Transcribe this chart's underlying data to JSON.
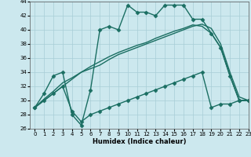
{
  "xlabel": "Humidex (Indice chaleur)",
  "xlim": [
    -0.5,
    23
  ],
  "ylim": [
    26,
    44
  ],
  "xticks": [
    0,
    1,
    2,
    3,
    4,
    5,
    6,
    7,
    8,
    9,
    10,
    11,
    12,
    13,
    14,
    15,
    16,
    17,
    18,
    19,
    20,
    21,
    22,
    23
  ],
  "yticks": [
    26,
    28,
    30,
    32,
    34,
    36,
    38,
    40,
    42,
    44
  ],
  "bg_color": "#cce8ee",
  "grid_color": "#a8cdd6",
  "line_color": "#1a6e62",
  "line_width": 1.0,
  "marker": "D",
  "marker_size": 2.5,
  "series1": [
    29,
    31,
    33.5,
    34,
    28,
    26.5,
    31.5,
    40,
    40.5,
    40,
    43.5,
    42.5,
    42.5,
    42,
    43.5,
    43.5,
    43.5,
    41.5,
    41.5,
    39.5,
    37.5,
    33.5,
    30,
    30
  ],
  "series2": [
    29,
    30,
    31,
    32,
    28.5,
    27,
    28,
    28.5,
    29,
    29.5,
    30,
    30.5,
    31,
    31.5,
    32,
    32.5,
    33,
    33.5,
    34,
    29,
    29.5,
    29.5,
    30,
    30
  ],
  "series3": [
    29,
    30.2,
    31.3,
    32.5,
    33.2,
    34,
    34.8,
    35.5,
    36.2,
    36.8,
    37.3,
    37.8,
    38.2,
    38.8,
    39.3,
    39.8,
    40.2,
    40.7,
    40.5,
    39.5,
    37.5,
    33.5,
    30,
    30
  ],
  "series4": [
    29,
    30,
    31,
    32,
    33,
    34,
    34.5,
    35,
    35.8,
    36.5,
    37,
    37.5,
    38,
    38.5,
    39,
    39.5,
    40,
    40.5,
    40.8,
    40.2,
    38,
    34,
    30.5,
    30
  ]
}
